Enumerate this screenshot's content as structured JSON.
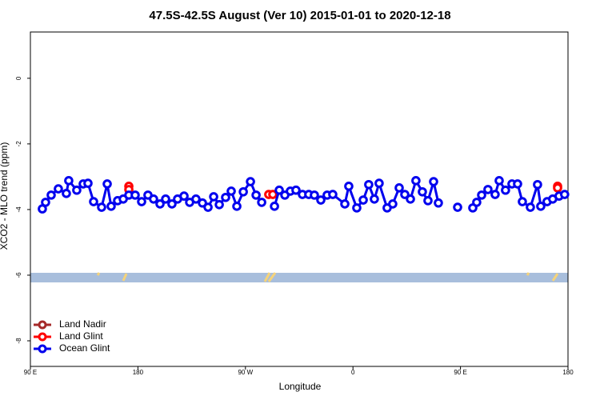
{
  "chart_data": {
    "type": "line",
    "title": "47.5S-42.5S August (Ver 10)   2015-01-01 to 2020-12-18",
    "x_label": "Longitude",
    "y_label": "XCO2 - MLO trend (ppm)",
    "xlim": [
      90,
      540
    ],
    "ylim": [
      -8.78,
      1.41
    ],
    "xticks": [
      {
        "value": 90,
        "label": "90 E"
      },
      {
        "value": 180,
        "label": "180"
      },
      {
        "value": 270,
        "label": "90 W"
      },
      {
        "value": 360,
        "label": "0"
      },
      {
        "value": 450,
        "label": "90 E"
      },
      {
        "value": 540,
        "label": "180"
      }
    ],
    "yticks": [
      0,
      -2,
      -4,
      -6,
      -8
    ],
    "legend": "bottomleft",
    "series": [
      {
        "name": "Land Nadir",
        "color": "#a52a2a",
        "x": [],
        "values": []
      },
      {
        "name": "Land Glint",
        "color": "#ff0000",
        "x": [
          172.4,
          172.4,
          null,
          289.5,
          292.9,
          null,
          531.3,
          531.3
        ],
        "values": [
          -3.29,
          -3.39,
          null,
          -3.54,
          -3.54,
          null,
          -3.29,
          -3.34
        ]
      },
      {
        "name": "Ocean Glint",
        "color": "#0000ee",
        "x": [
          100.0,
          102.7,
          107.4,
          113.4,
          120.1,
          122.1,
          128.8,
          134.2,
          138.2,
          142.9,
          149.6,
          154.3,
          157.6,
          163.0,
          167.7,
          172.4,
          177.7,
          183.1,
          188.4,
          193.1,
          198.5,
          203.2,
          208.5,
          213.2,
          218.6,
          223.3,
          228.6,
          234.0,
          238.7,
          243.4,
          248.1,
          253.4,
          258.1,
          262.8,
          268.2,
          274.2,
          278.9,
          283.6,
          null,
          294.3,
          298.3,
          303.0,
          307.6,
          312.3,
          317.7,
          323.0,
          327.7,
          333.1,
          338.4,
          343.1,
          353.2,
          356.5,
          363.2,
          368.6,
          373.2,
          377.9,
          381.9,
          388.6,
          393.3,
          398.7,
          403.4,
          408.1,
          412.7,
          418.1,
          422.8,
          427.5,
          431.5,
          null,
          447.6,
          null,
          460.3,
          463.6,
          467.7,
          473.0,
          479.0,
          482.4,
          487.7,
          493.1,
          497.8,
          501.8,
          508.5,
          514.5,
          517.2,
          522.5,
          527.2,
          532.5,
          537.2
        ],
        "values": [
          -3.98,
          -3.78,
          -3.56,
          -3.37,
          -3.51,
          -3.12,
          -3.41,
          -3.22,
          -3.2,
          -3.76,
          -3.93,
          -3.22,
          -3.9,
          -3.73,
          -3.68,
          -3.56,
          -3.56,
          -3.76,
          -3.56,
          -3.68,
          -3.83,
          -3.68,
          -3.83,
          -3.68,
          -3.59,
          -3.78,
          -3.68,
          -3.8,
          -3.93,
          -3.61,
          -3.85,
          -3.63,
          -3.44,
          -3.9,
          -3.46,
          -3.15,
          -3.56,
          -3.78,
          null,
          -3.9,
          -3.41,
          -3.56,
          -3.44,
          -3.41,
          -3.54,
          -3.54,
          -3.56,
          -3.71,
          -3.56,
          -3.54,
          -3.83,
          -3.29,
          -3.95,
          -3.71,
          -3.24,
          -3.68,
          -3.2,
          -3.95,
          -3.83,
          -3.34,
          -3.54,
          -3.68,
          -3.12,
          -3.46,
          -3.73,
          -3.15,
          -3.8,
          null,
          -3.93,
          null,
          -3.95,
          -3.78,
          -3.56,
          -3.39,
          -3.54,
          -3.12,
          -3.41,
          -3.22,
          -3.22,
          -3.76,
          -3.93,
          -3.24,
          -3.9,
          -3.76,
          -3.68,
          -3.59,
          -3.54
        ]
      }
    ]
  }
}
